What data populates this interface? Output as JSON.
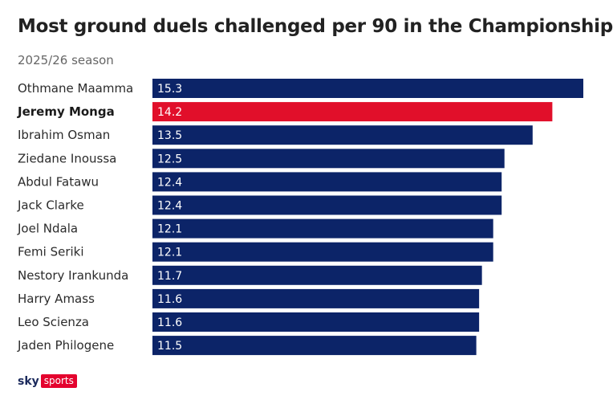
{
  "header": {
    "title": "Most ground duels challenged per 90 in the Championship",
    "subtitle": "2025/26 season"
  },
  "brand": {
    "sky": "sky",
    "sports": "sports"
  },
  "colors": {
    "bar": "#0c2468",
    "highlight": "#e10f2a"
  },
  "chart_data": {
    "type": "bar",
    "orientation": "horizontal",
    "title": "Most ground duels challenged per 90 in the Championship",
    "subtitle": "2025/26 season",
    "categories": [
      "Othmane Maamma",
      "Jeremy Monga",
      "Ibrahim Osman",
      "Ziedane Inoussa",
      "Abdul Fatawu",
      "Jack Clarke",
      "Joel Ndala",
      "Femi Seriki",
      "Nestory Irankunda",
      "Harry Amass",
      "Leo Scienza",
      "Jaden Philogene"
    ],
    "values": [
      15.3,
      14.2,
      13.5,
      12.5,
      12.4,
      12.4,
      12.1,
      12.1,
      11.7,
      11.6,
      11.6,
      11.5
    ],
    "value_labels": [
      "15.3",
      "14.2",
      "13.5",
      "12.5",
      "12.4",
      "12.4",
      "12.1",
      "12.1",
      "11.7",
      "11.6",
      "11.6",
      "11.5"
    ],
    "highlighted": [
      "Jeremy Monga"
    ],
    "xlim": [
      0,
      15.3
    ],
    "grid": false,
    "legend": "none"
  }
}
